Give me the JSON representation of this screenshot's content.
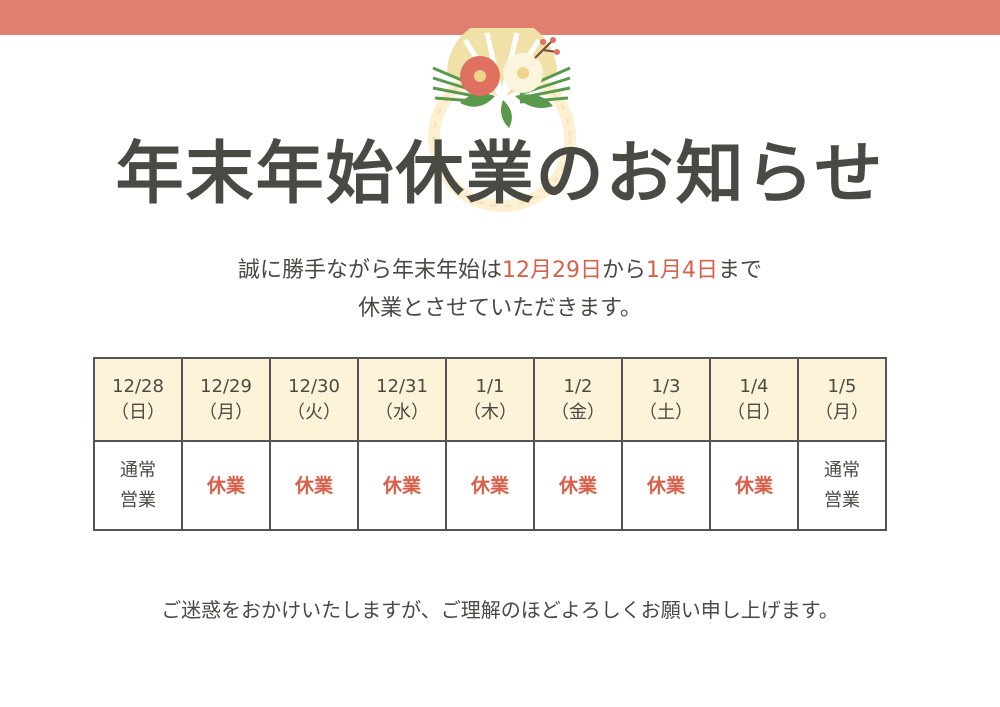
{
  "colors": {
    "topbar": "#e07f6f",
    "accent": "#d9604a",
    "header_bg": "#fdf3d8",
    "text": "#4a4a44"
  },
  "decoration": "new-year-shimenawa-wreath-with-camellia",
  "title": "年末年始休業のお知らせ",
  "message": {
    "line1_a": "誠に勝手ながら年末年始は",
    "date_start": "12月29日",
    "line1_b": "から",
    "date_end": "1月4日",
    "line1_c": "まで",
    "line2": "休業とさせていただきます。"
  },
  "schedule": [
    {
      "date": "12/28",
      "day": "（日）",
      "status": "通常営業",
      "status_l1": "通常",
      "status_l2": "営業",
      "closed": false
    },
    {
      "date": "12/29",
      "day": "（月）",
      "status": "休業",
      "closed": true
    },
    {
      "date": "12/30",
      "day": "（火）",
      "status": "休業",
      "closed": true
    },
    {
      "date": "12/31",
      "day": "（水）",
      "status": "休業",
      "closed": true
    },
    {
      "date": "1/1",
      "day": "（木）",
      "status": "休業",
      "closed": true
    },
    {
      "date": "1/2",
      "day": "（金）",
      "status": "休業",
      "closed": true
    },
    {
      "date": "1/3",
      "day": "（土）",
      "status": "休業",
      "closed": true
    },
    {
      "date": "1/4",
      "day": "（日）",
      "status": "休業",
      "closed": true
    },
    {
      "date": "1/5",
      "day": "（月）",
      "status": "通常営業",
      "status_l1": "通常",
      "status_l2": "営業",
      "closed": false
    }
  ],
  "footer": "ご迷惑をおかけいたしますが、ご理解のほどよろしくお願い申し上げます。"
}
